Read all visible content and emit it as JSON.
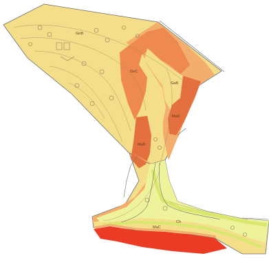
{
  "map": {
    "colors": {
      "background": "#ffffff",
      "pale_yellow": "#f5de8a",
      "light_orange": "#f3ad6c",
      "orange": "#ee8a50",
      "dark_orange": "#e4703f",
      "lime": "#eef29a",
      "lime_dark": "#d8e86e",
      "red": "#ec3b25",
      "outline": "#6b6b6b",
      "linework": "#8d7f5a"
    },
    "labels": [
      {
        "id": "GnB",
        "text": "GnB"
      },
      {
        "id": "GnC",
        "text": "GnC"
      },
      {
        "id": "GaB",
        "text": "GaB"
      },
      {
        "id": "MaD1",
        "text": "MaD"
      },
      {
        "id": "MaD2",
        "text": "MaD"
      },
      {
        "id": "Ch",
        "text": "Ch"
      },
      {
        "id": "MaC",
        "text": "MaC"
      }
    ]
  }
}
